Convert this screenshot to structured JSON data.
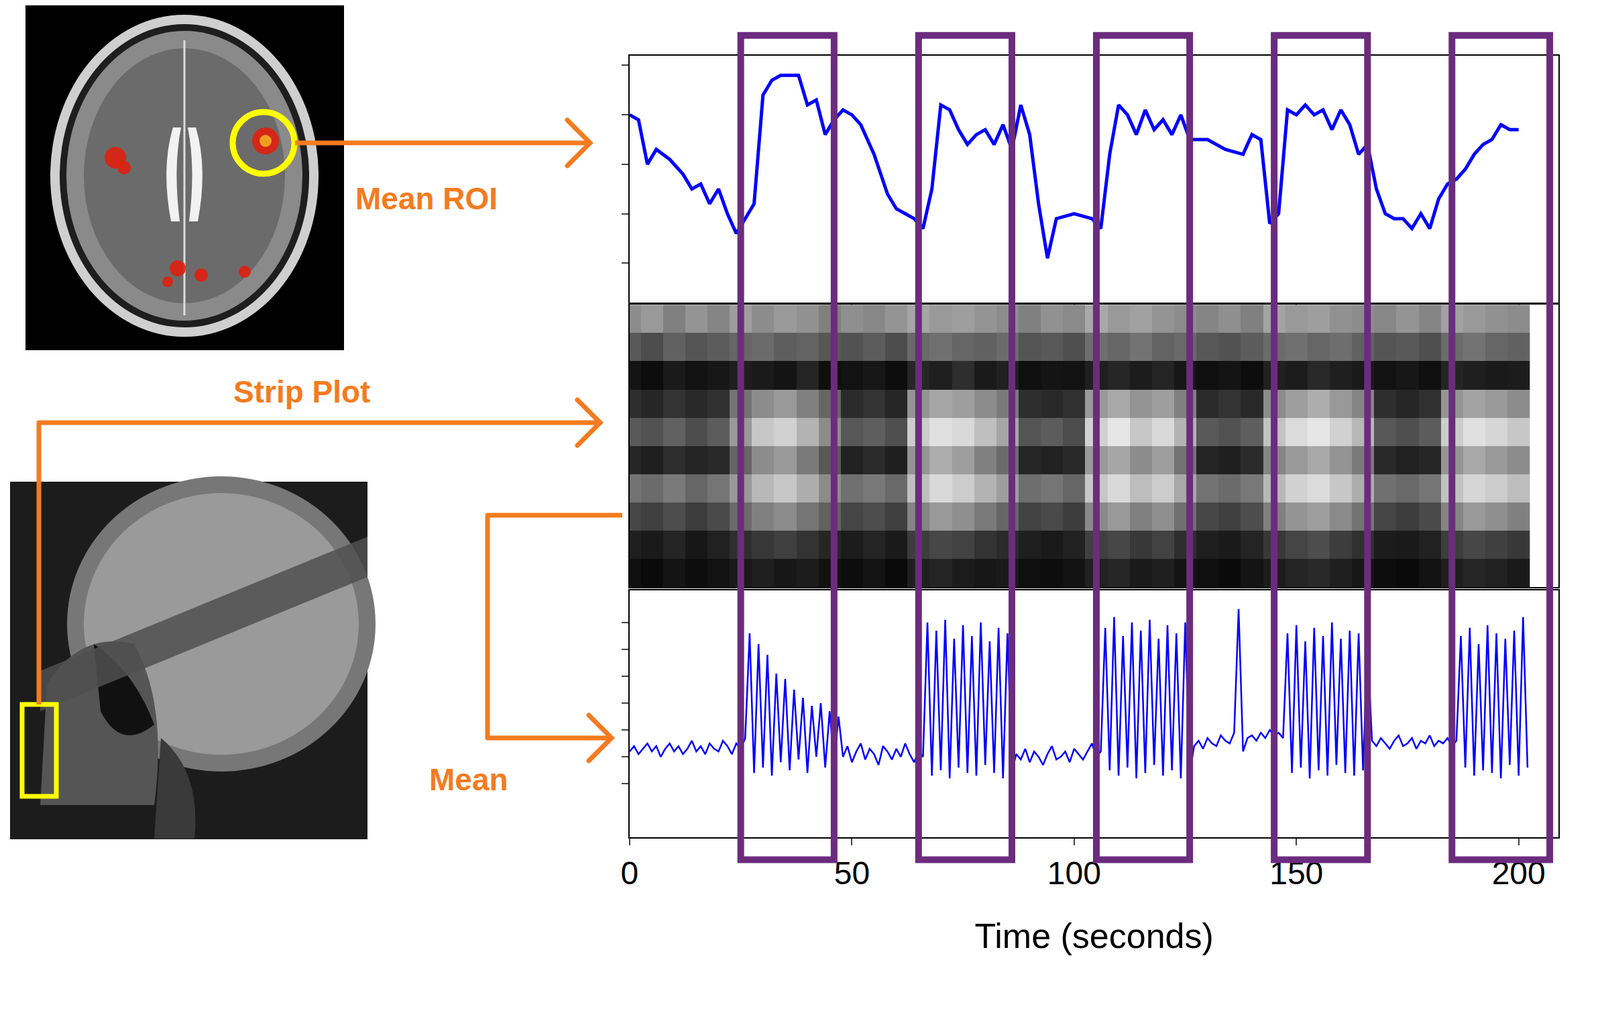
{
  "chart_data": [
    {
      "type": "line",
      "color": "#0000ff",
      "x": [
        0,
        2,
        4,
        6,
        9,
        12,
        14,
        16,
        18,
        20,
        22,
        24,
        26,
        28,
        30,
        32,
        34,
        36,
        38,
        40,
        42,
        44,
        46,
        48,
        50,
        52,
        55,
        58,
        60,
        62,
        64,
        66,
        68,
        70,
        72,
        74,
        76,
        78,
        80,
        82,
        84,
        86,
        88,
        90,
        92,
        94,
        96,
        100,
        104,
        106,
        108,
        110,
        112,
        114,
        116,
        118,
        120,
        122,
        124,
        126,
        130,
        134,
        138,
        140,
        142,
        144,
        146,
        148,
        150,
        152,
        154,
        156,
        158,
        160,
        162,
        164,
        166,
        168,
        170,
        172,
        174,
        176,
        178,
        180,
        182,
        184,
        186,
        188,
        190,
        192,
        194,
        196,
        198,
        200
      ],
      "values": [
        4.0,
        3.9,
        3.0,
        3.3,
        3.1,
        2.8,
        2.5,
        2.6,
        2.2,
        2.5,
        2.0,
        1.6,
        1.9,
        2.2,
        4.4,
        4.7,
        4.8,
        4.8,
        4.8,
        4.2,
        4.3,
        3.6,
        3.9,
        4.1,
        4.0,
        3.8,
        3.2,
        2.4,
        2.1,
        2.0,
        1.9,
        1.7,
        2.5,
        4.2,
        4.1,
        3.7,
        3.4,
        3.6,
        3.7,
        3.4,
        3.8,
        3.3,
        4.2,
        3.6,
        2.2,
        1.1,
        1.9,
        2.0,
        1.9,
        1.7,
        3.2,
        4.2,
        4.0,
        3.6,
        4.1,
        3.7,
        3.9,
        3.6,
        4.0,
        3.5,
        3.5,
        3.3,
        3.2,
        3.6,
        3.5,
        1.8,
        2.0,
        4.1,
        4.0,
        4.2,
        4.0,
        4.1,
        3.7,
        4.1,
        3.8,
        3.2,
        3.4,
        2.5,
        2.0,
        1.9,
        1.9,
        1.7,
        2.0,
        1.7,
        2.3,
        2.6,
        2.7,
        2.9,
        3.2,
        3.4,
        3.5,
        3.8,
        3.7,
        3.7
      ],
      "xlim": [
        0,
        209
      ],
      "xticks": [
        0,
        50,
        100,
        150,
        200
      ],
      "ylim": [
        0.2,
        5.2
      ],
      "yticks": [
        1,
        2,
        3,
        4,
        5
      ],
      "tick_labels": false
    },
    {
      "type": "heatmap",
      "x": [
        0,
        5,
        10,
        15,
        20,
        25,
        30,
        35,
        40,
        45,
        50,
        55,
        60,
        65,
        70,
        75,
        80,
        85,
        90,
        95,
        100,
        105,
        110,
        115,
        120,
        125,
        130,
        135,
        140,
        145,
        150,
        155,
        160,
        165,
        170,
        175,
        180,
        185,
        190,
        195,
        200
      ],
      "cells": [
        [
          0.55,
          0.6,
          0.5,
          0.58,
          0.52,
          0.62,
          0.55,
          0.6,
          0.57,
          0.5,
          0.56,
          0.53,
          0.58,
          0.65,
          0.6,
          0.62,
          0.58,
          0.55,
          0.5,
          0.57,
          0.54,
          0.66,
          0.6,
          0.63,
          0.58,
          0.55,
          0.52,
          0.56,
          0.5,
          0.64,
          0.6,
          0.62,
          0.57,
          0.55,
          0.53,
          0.58,
          0.52,
          0.63,
          0.6,
          0.57,
          0.55
        ],
        [
          0.35,
          0.3,
          0.38,
          0.33,
          0.36,
          0.4,
          0.42,
          0.37,
          0.39,
          0.34,
          0.32,
          0.36,
          0.3,
          0.41,
          0.44,
          0.4,
          0.38,
          0.42,
          0.33,
          0.35,
          0.31,
          0.43,
          0.4,
          0.45,
          0.39,
          0.41,
          0.34,
          0.32,
          0.36,
          0.42,
          0.44,
          0.4,
          0.43,
          0.38,
          0.33,
          0.35,
          0.31,
          0.42,
          0.45,
          0.4,
          0.38
        ],
        [
          0.08,
          0.05,
          0.1,
          0.07,
          0.09,
          0.12,
          0.1,
          0.08,
          0.14,
          0.06,
          0.07,
          0.09,
          0.05,
          0.15,
          0.12,
          0.18,
          0.1,
          0.13,
          0.06,
          0.08,
          0.07,
          0.12,
          0.15,
          0.11,
          0.14,
          0.09,
          0.06,
          0.08,
          0.05,
          0.13,
          0.11,
          0.16,
          0.12,
          0.1,
          0.07,
          0.09,
          0.06,
          0.14,
          0.12,
          0.1,
          0.11
        ],
        [
          0.18,
          0.15,
          0.2,
          0.16,
          0.19,
          0.45,
          0.55,
          0.6,
          0.5,
          0.4,
          0.17,
          0.2,
          0.15,
          0.58,
          0.65,
          0.62,
          0.55,
          0.48,
          0.18,
          0.16,
          0.19,
          0.6,
          0.66,
          0.58,
          0.62,
          0.5,
          0.17,
          0.2,
          0.16,
          0.55,
          0.62,
          0.68,
          0.6,
          0.52,
          0.18,
          0.15,
          0.19,
          0.58,
          0.64,
          0.6,
          0.55
        ],
        [
          0.35,
          0.32,
          0.38,
          0.3,
          0.36,
          0.6,
          0.78,
          0.82,
          0.7,
          0.55,
          0.34,
          0.37,
          0.31,
          0.8,
          0.88,
          0.85,
          0.75,
          0.65,
          0.33,
          0.36,
          0.3,
          0.82,
          0.9,
          0.78,
          0.85,
          0.7,
          0.35,
          0.32,
          0.37,
          0.76,
          0.86,
          0.9,
          0.82,
          0.72,
          0.34,
          0.31,
          0.36,
          0.8,
          0.88,
          0.84,
          0.78
        ],
        [
          0.15,
          0.12,
          0.18,
          0.14,
          0.16,
          0.4,
          0.55,
          0.6,
          0.48,
          0.35,
          0.13,
          0.17,
          0.12,
          0.58,
          0.68,
          0.62,
          0.5,
          0.42,
          0.15,
          0.13,
          0.16,
          0.6,
          0.65,
          0.55,
          0.62,
          0.45,
          0.14,
          0.12,
          0.17,
          0.52,
          0.6,
          0.66,
          0.58,
          0.48,
          0.16,
          0.13,
          0.15,
          0.58,
          0.66,
          0.6,
          0.55
        ],
        [
          0.45,
          0.42,
          0.48,
          0.4,
          0.46,
          0.6,
          0.72,
          0.78,
          0.68,
          0.55,
          0.44,
          0.47,
          0.41,
          0.75,
          0.85,
          0.8,
          0.7,
          0.62,
          0.43,
          0.46,
          0.4,
          0.78,
          0.85,
          0.74,
          0.8,
          0.66,
          0.45,
          0.42,
          0.47,
          0.72,
          0.82,
          0.86,
          0.78,
          0.68,
          0.44,
          0.41,
          0.46,
          0.76,
          0.84,
          0.8,
          0.74
        ],
        [
          0.28,
          0.25,
          0.3,
          0.24,
          0.29,
          0.42,
          0.5,
          0.55,
          0.46,
          0.38,
          0.27,
          0.3,
          0.25,
          0.52,
          0.6,
          0.56,
          0.48,
          0.4,
          0.26,
          0.29,
          0.24,
          0.54,
          0.6,
          0.5,
          0.56,
          0.44,
          0.28,
          0.25,
          0.3,
          0.5,
          0.58,
          0.62,
          0.54,
          0.45,
          0.27,
          0.24,
          0.29,
          0.52,
          0.6,
          0.56,
          0.5
        ],
        [
          0.12,
          0.1,
          0.14,
          0.09,
          0.13,
          0.18,
          0.22,
          0.25,
          0.2,
          0.15,
          0.11,
          0.14,
          0.1,
          0.24,
          0.28,
          0.26,
          0.2,
          0.17,
          0.12,
          0.1,
          0.13,
          0.25,
          0.28,
          0.22,
          0.26,
          0.18,
          0.12,
          0.1,
          0.14,
          0.22,
          0.27,
          0.3,
          0.24,
          0.19,
          0.11,
          0.1,
          0.13,
          0.24,
          0.28,
          0.25,
          0.22
        ],
        [
          0.06,
          0.04,
          0.08,
          0.05,
          0.07,
          0.1,
          0.12,
          0.09,
          0.11,
          0.07,
          0.05,
          0.08,
          0.04,
          0.12,
          0.14,
          0.11,
          0.09,
          0.1,
          0.06,
          0.05,
          0.07,
          0.13,
          0.15,
          0.1,
          0.12,
          0.08,
          0.06,
          0.04,
          0.08,
          0.11,
          0.14,
          0.16,
          0.12,
          0.09,
          0.05,
          0.04,
          0.07,
          0.12,
          0.15,
          0.13,
          0.1
        ]
      ],
      "zlim": [
        0,
        1
      ],
      "xlim": [
        0,
        209
      ],
      "xticks": [
        0,
        50,
        100,
        150,
        200
      ],
      "tick_labels": false
    },
    {
      "type": "line",
      "color": "#0000ff",
      "x": [
        0,
        1,
        2,
        3,
        4,
        5,
        6,
        7,
        8,
        9,
        10,
        11,
        12,
        13,
        14,
        15,
        16,
        17,
        18,
        19,
        20,
        21,
        22,
        23,
        24,
        25,
        26,
        27,
        28,
        29,
        30,
        31,
        32,
        33,
        34,
        35,
        36,
        37,
        38,
        39,
        40,
        41,
        42,
        43,
        44,
        45,
        46,
        47,
        48,
        49,
        50,
        51,
        52,
        53,
        54,
        55,
        56,
        57,
        58,
        59,
        60,
        61,
        62,
        63,
        64,
        65,
        66,
        67,
        68,
        69,
        70,
        71,
        72,
        73,
        74,
        75,
        76,
        77,
        78,
        79,
        80,
        81,
        82,
        83,
        84,
        85,
        86,
        87,
        88,
        89,
        90,
        91,
        92,
        93,
        94,
        95,
        96,
        97,
        98,
        99,
        100,
        101,
        102,
        103,
        104,
        105,
        106,
        107,
        108,
        109,
        110,
        111,
        112,
        113,
        114,
        115,
        116,
        117,
        118,
        119,
        120,
        121,
        122,
        123,
        124,
        125,
        126,
        127,
        128,
        129,
        130,
        131,
        132,
        133,
        134,
        135,
        136,
        137,
        138,
        139,
        140,
        141,
        142,
        143,
        144,
        145,
        146,
        147,
        148,
        149,
        150,
        151,
        152,
        153,
        154,
        155,
        156,
        157,
        158,
        159,
        160,
        161,
        162,
        163,
        164,
        165,
        166,
        167,
        168,
        169,
        170,
        171,
        172,
        173,
        174,
        175,
        176,
        177,
        178,
        179,
        180,
        181,
        182,
        183,
        184,
        185,
        186,
        187,
        188,
        189,
        190,
        191,
        192,
        193,
        194,
        195,
        196,
        197,
        198,
        199,
        200,
        201,
        202
      ],
      "values": [
        1.2,
        1.4,
        1.1,
        1.3,
        1.5,
        1.2,
        1.4,
        1.0,
        1.3,
        1.5,
        1.2,
        1.4,
        1.1,
        1.3,
        1.6,
        1.2,
        1.4,
        1.1,
        1.5,
        1.3,
        1.2,
        1.6,
        1.4,
        1.1,
        1.5,
        1.3,
        1.7,
        5.6,
        0.4,
        5.2,
        0.6,
        4.8,
        0.3,
        4.1,
        0.8,
        3.9,
        0.5,
        3.5,
        0.9,
        3.2,
        0.4,
        2.9,
        1.0,
        3.0,
        0.6,
        2.7,
        0.8,
        2.5,
        1.0,
        1.4,
        0.8,
        1.2,
        1.5,
        0.9,
        1.3,
        1.1,
        0.7,
        1.4,
        1.2,
        0.9,
        1.3,
        1.0,
        1.5,
        1.1,
        0.8,
        1.2,
        1.0,
        6.0,
        0.3,
        5.7,
        0.5,
        6.1,
        0.2,
        5.4,
        0.6,
        5.9,
        0.4,
        5.5,
        0.3,
        6.0,
        0.7,
        5.3,
        0.4,
        5.8,
        0.2,
        5.6,
        0.5,
        1.1,
        0.9,
        1.3,
        0.8,
        1.2,
        1.0,
        0.7,
        1.1,
        1.4,
        0.9,
        1.0,
        1.2,
        0.8,
        1.3,
        1.1,
        0.9,
        1.2,
        1.5,
        1.0,
        1.2,
        5.8,
        0.5,
        6.2,
        0.3,
        5.5,
        0.6,
        6.0,
        0.2,
        5.7,
        0.4,
        6.1,
        0.7,
        5.4,
        0.3,
        5.9,
        0.5,
        5.6,
        0.2,
        6.0,
        0.4,
        1.4,
        1.6,
        1.3,
        1.7,
        1.5,
        1.4,
        1.8,
        1.6,
        1.5,
        1.9,
        6.5,
        1.2,
        1.7,
        1.8,
        1.6,
        1.9,
        1.7,
        2.0,
        1.8,
        1.9,
        1.7,
        5.6,
        0.4,
        5.9,
        0.6,
        5.3,
        0.2,
        5.8,
        0.5,
        5.5,
        0.3,
        6.0,
        0.7,
        5.4,
        0.4,
        5.7,
        0.3,
        5.6,
        0.5,
        5.2,
        1.6,
        1.4,
        1.7,
        1.5,
        1.3,
        1.6,
        1.8,
        1.4,
        1.5,
        1.7,
        1.3,
        1.6,
        1.5,
        1.8,
        1.4,
        1.6,
        1.5,
        1.7,
        1.4,
        1.6,
        5.5,
        0.6,
        5.8,
        0.3,
        5.2,
        0.5,
        5.9,
        0.4,
        5.6,
        0.2,
        5.4,
        0.7,
        5.7,
        0.3,
        6.2,
        0.6
      ],
      "xlim": [
        0,
        209
      ],
      "xticks": [
        0,
        50,
        100,
        150,
        200
      ],
      "ylim": [
        -2,
        7.2
      ],
      "yticks": [
        0,
        1,
        2,
        3,
        4,
        5,
        6
      ],
      "xlabel": "Time (seconds)",
      "tick_labels": "x"
    }
  ],
  "highlights": {
    "color": "#6b2c7e",
    "ranges": [
      [
        25,
        46
      ],
      [
        65,
        86
      ],
      [
        105,
        126
      ],
      [
        145,
        166
      ],
      [
        185,
        207
      ]
    ]
  },
  "annotations": {
    "color": "#f47b20",
    "texts": [
      "Mean ROI",
      "Strip Plot",
      "Mean"
    ]
  }
}
